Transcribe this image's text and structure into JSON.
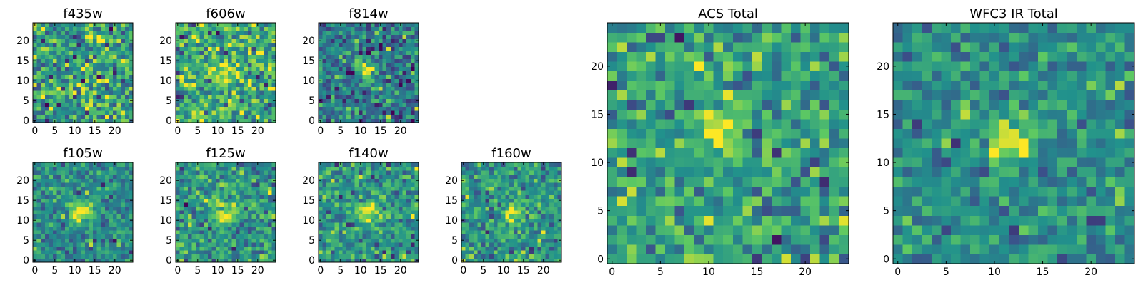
{
  "colormap": "viridis",
  "colors": {
    "cmap_stops": [
      "#440154",
      "#3b528b",
      "#21918c",
      "#5ec962",
      "#fde725"
    ],
    "frame": "#000000",
    "background": "#ffffff"
  },
  "chart_data": [
    {
      "type": "heatmap",
      "name": "f435w",
      "title": "f435w",
      "grid": 25,
      "xlim": [
        0,
        24
      ],
      "ylim": [
        0,
        24
      ],
      "xticks": [
        0,
        5,
        10,
        15,
        20
      ],
      "yticks": [
        0,
        5,
        10,
        15,
        20
      ],
      "value_range": [
        0,
        1
      ],
      "noise_mean": 0.55,
      "noise_sd": 0.2,
      "source": {
        "x": 12,
        "y": 12,
        "peak": 0.0,
        "sigma": 2.0
      },
      "seed": 11
    },
    {
      "type": "heatmap",
      "name": "f606w",
      "title": "f606w",
      "grid": 25,
      "xlim": [
        0,
        24
      ],
      "ylim": [
        0,
        24
      ],
      "xticks": [
        0,
        5,
        10,
        15,
        20
      ],
      "yticks": [
        0,
        5,
        10,
        15,
        20
      ],
      "value_range": [
        0,
        1
      ],
      "noise_mean": 0.6,
      "noise_sd": 0.2,
      "source": {
        "x": 12,
        "y": 12,
        "peak": 0.2,
        "sigma": 2.0
      },
      "seed": 23
    },
    {
      "type": "heatmap",
      "name": "f814w",
      "title": "f814w",
      "grid": 25,
      "xlim": [
        0,
        24
      ],
      "ylim": [
        0,
        24
      ],
      "xticks": [
        0,
        5,
        10,
        15,
        20
      ],
      "yticks": [
        0,
        5,
        10,
        15,
        20
      ],
      "value_range": [
        0,
        1
      ],
      "noise_mean": 0.42,
      "noise_sd": 0.17,
      "source": {
        "x": 11.5,
        "y": 12.5,
        "peak": 0.55,
        "sigma": 1.4
      },
      "seed": 37
    },
    {
      "type": "heatmap",
      "name": "f105w",
      "title": "f105w",
      "grid": 25,
      "xlim": [
        0,
        24
      ],
      "ylim": [
        0,
        24
      ],
      "xticks": [
        0,
        5,
        10,
        15,
        20
      ],
      "yticks": [
        0,
        5,
        10,
        15,
        20
      ],
      "value_range": [
        0,
        1
      ],
      "noise_mean": 0.48,
      "noise_sd": 0.13,
      "source": {
        "x": 11.5,
        "y": 12.5,
        "peak": 0.55,
        "sigma": 2.0
      },
      "seed": 41
    },
    {
      "type": "heatmap",
      "name": "f125w",
      "title": "f125w",
      "grid": 25,
      "xlim": [
        0,
        24
      ],
      "ylim": [
        0,
        24
      ],
      "xticks": [
        0,
        5,
        10,
        15,
        20
      ],
      "yticks": [
        0,
        5,
        10,
        15,
        20
      ],
      "value_range": [
        0,
        1
      ],
      "noise_mean": 0.52,
      "noise_sd": 0.15,
      "source": {
        "x": 12,
        "y": 11.5,
        "peak": 0.45,
        "sigma": 2.0
      },
      "seed": 53
    },
    {
      "type": "heatmap",
      "name": "f140w",
      "title": "f140w",
      "grid": 25,
      "xlim": [
        0,
        24
      ],
      "ylim": [
        0,
        24
      ],
      "xticks": [
        0,
        5,
        10,
        15,
        20
      ],
      "yticks": [
        0,
        5,
        10,
        15,
        20
      ],
      "value_range": [
        0,
        1
      ],
      "noise_mean": 0.52,
      "noise_sd": 0.15,
      "source": {
        "x": 12,
        "y": 12,
        "peak": 0.45,
        "sigma": 2.0
      },
      "seed": 67
    },
    {
      "type": "heatmap",
      "name": "f160w",
      "title": "f160w",
      "grid": 25,
      "xlim": [
        0,
        24
      ],
      "ylim": [
        0,
        24
      ],
      "xticks": [
        0,
        5,
        10,
        15,
        20
      ],
      "yticks": [
        0,
        5,
        10,
        15,
        20
      ],
      "value_range": [
        0,
        1
      ],
      "noise_mean": 0.52,
      "noise_sd": 0.15,
      "source": {
        "x": 12.5,
        "y": 12,
        "peak": 0.45,
        "sigma": 1.8
      },
      "seed": 79
    },
    {
      "type": "heatmap",
      "name": "acs-total",
      "title": "ACS Total",
      "grid": 25,
      "xlim": [
        0,
        24
      ],
      "ylim": [
        0,
        24
      ],
      "xticks": [
        0,
        5,
        10,
        15,
        20
      ],
      "yticks": [
        0,
        5,
        10,
        15,
        20
      ],
      "value_range": [
        0,
        1
      ],
      "noise_mean": 0.56,
      "noise_sd": 0.16,
      "source": {
        "x": 11.5,
        "y": 13,
        "peak": 0.5,
        "sigma": 1.6
      },
      "seed": 89
    },
    {
      "type": "heatmap",
      "name": "wfc3-ir-total",
      "title": "WFC3 IR Total",
      "grid": 25,
      "xlim": [
        0,
        24
      ],
      "ylim": [
        0,
        24
      ],
      "xticks": [
        0,
        5,
        10,
        15,
        20
      ],
      "yticks": [
        0,
        5,
        10,
        15,
        20
      ],
      "value_range": [
        0,
        1
      ],
      "noise_mean": 0.48,
      "noise_sd": 0.13,
      "source": {
        "x": 11.5,
        "y": 12.5,
        "peak": 0.55,
        "sigma": 1.7
      },
      "seed": 97
    }
  ]
}
